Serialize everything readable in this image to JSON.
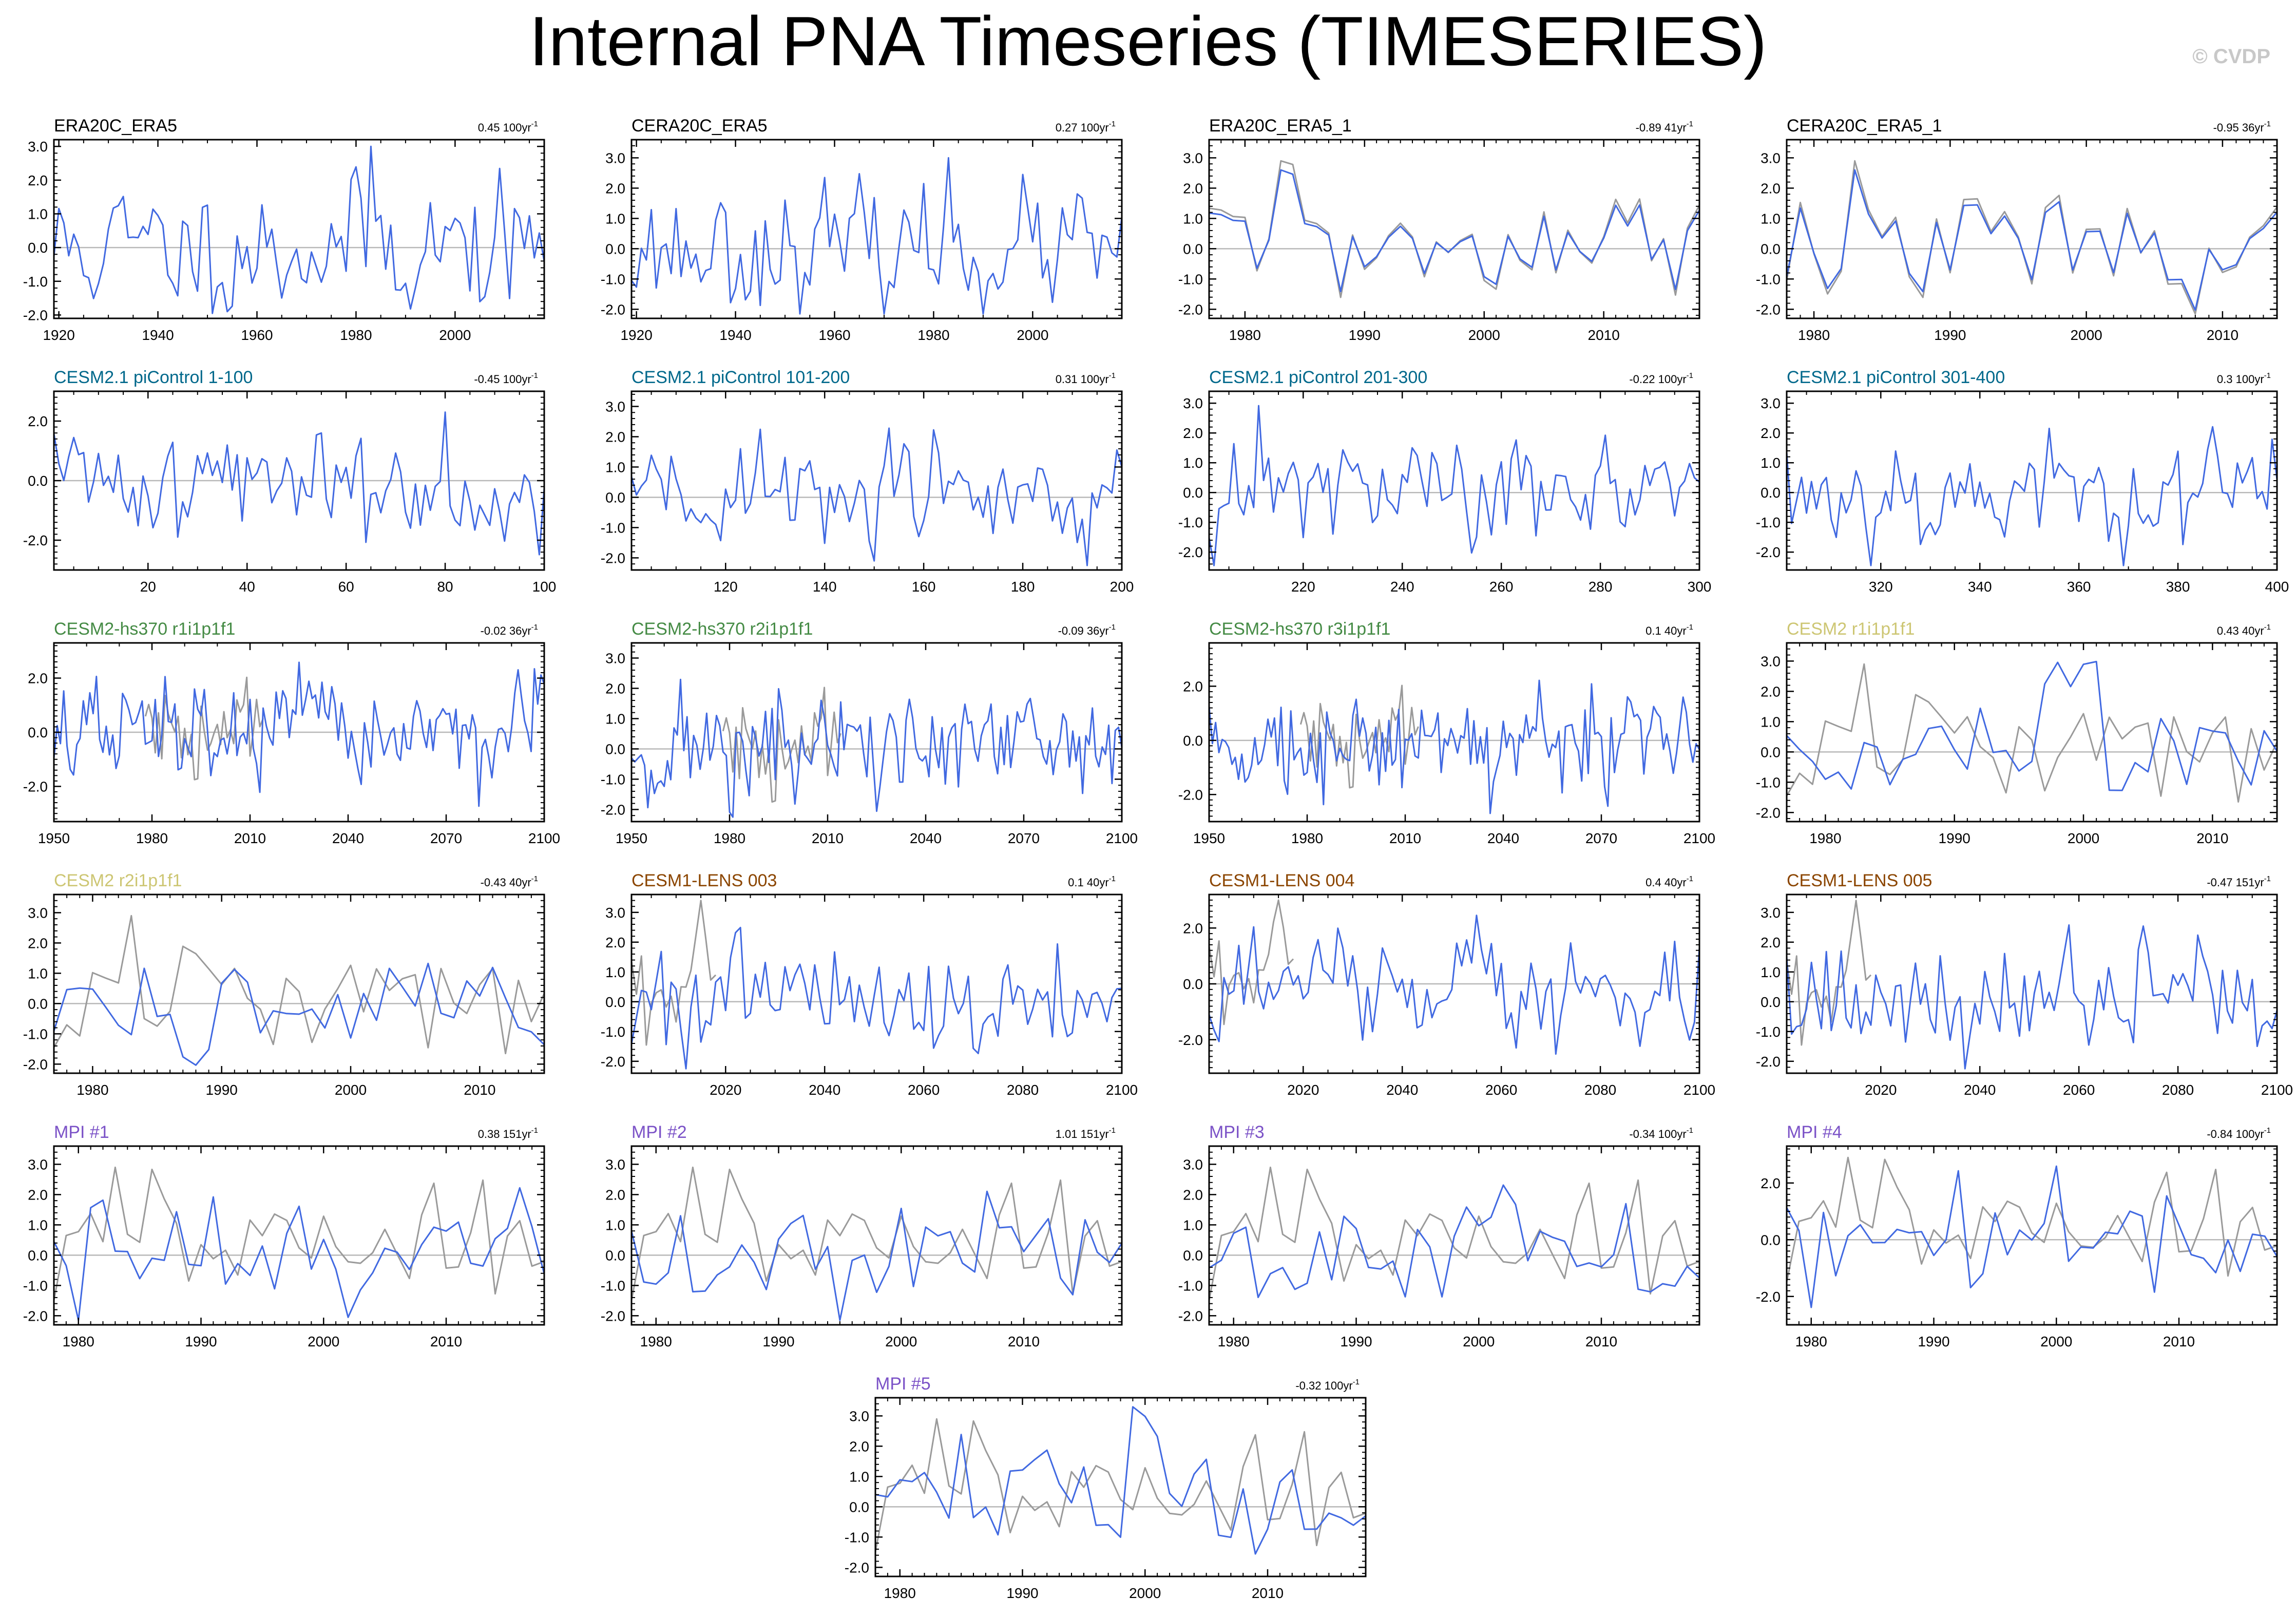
{
  "page": {
    "title": "Internal PNA Timeseries (TIMESERIES)",
    "watermark": "© CVDP"
  },
  "colors": {
    "model": "#4169e1",
    "observations": "#9a9a9a",
    "zero_line": "#b8b8b8",
    "title_obs": "#000000",
    "title_picontrol": "#00688b",
    "title_hs370": "#458b45",
    "title_cesm2": "#cdc673",
    "title_lens": "#8b4500",
    "title_mpi": "#7b52c7"
  },
  "chart_data": [
    {
      "type": "line",
      "title": "ERA20C_ERA5",
      "title_color": "#000000",
      "trend": "0.45 100yr",
      "trend_sup": "-1",
      "xlim": [
        1919,
        2018
      ],
      "xticks": [
        1920,
        1940,
        1960,
        1980,
        2000
      ],
      "ylim": [
        -2.1,
        3.2
      ],
      "yticks": [
        3.0,
        2.0,
        1.0,
        0.0,
        -1.0,
        -2.0
      ],
      "series": [
        {
          "color": "#4169e1",
          "seed": 11,
          "start": 1919,
          "end": 2018,
          "amp": 1.0,
          "peak_x": 1983,
          "peak_y": 3.0
        }
      ]
    },
    {
      "type": "line",
      "title": "CERA20C_ERA5",
      "title_color": "#000000",
      "trend": "0.27 100yr",
      "trend_sup": "-1",
      "xlim": [
        1919,
        2018
      ],
      "xticks": [
        1920,
        1940,
        1960,
        1980,
        2000
      ],
      "ylim": [
        -2.3,
        3.6
      ],
      "yticks": [
        3.0,
        2.0,
        1.0,
        0.0,
        -1.0,
        -2.0
      ],
      "series": [
        {
          "color": "#4169e1",
          "seed": 23,
          "start": 1919,
          "end": 2018,
          "amp": 1.0,
          "peak_x": 1983,
          "peak_y": 3.0
        }
      ]
    },
    {
      "type": "line",
      "title": "ERA20C_ERA5_1",
      "title_color": "#000000",
      "trend": "-0.89 41yr",
      "trend_sup": "-1",
      "xlim": [
        1977,
        2018
      ],
      "xticks": [
        1980,
        1990,
        2000,
        2010
      ],
      "ylim": [
        -2.3,
        3.6
      ],
      "yticks": [
        3.0,
        2.0,
        1.0,
        0.0,
        -1.0,
        -2.0
      ],
      "series": [
        {
          "color": "#9a9a9a",
          "seed": 31,
          "start": 1977,
          "end": 2018,
          "amp": 1.0,
          "peak_x": 1983,
          "peak_y": 2.9
        },
        {
          "color": "#4169e1",
          "seed": 31,
          "start": 1977,
          "end": 2018,
          "amp": 0.88,
          "peak_x": 1983,
          "peak_y": 2.6
        }
      ]
    },
    {
      "type": "line",
      "title": "CERA20C_ERA5_1",
      "title_color": "#000000",
      "trend": "-0.95 36yr",
      "trend_sup": "-1",
      "xlim": [
        1978,
        2014
      ],
      "xticks": [
        1980,
        1990,
        2000,
        2010
      ],
      "ylim": [
        -2.3,
        3.6
      ],
      "yticks": [
        3.0,
        2.0,
        1.0,
        0.0,
        -1.0,
        -2.0
      ],
      "series": [
        {
          "color": "#9a9a9a",
          "seed": 37,
          "start": 1978,
          "end": 2014,
          "amp": 1.0,
          "peak_x": 1983,
          "peak_y": 2.9
        },
        {
          "color": "#4169e1",
          "seed": 37,
          "start": 1978,
          "end": 2014,
          "amp": 0.88,
          "peak_x": 1983,
          "peak_y": 2.6
        }
      ]
    },
    {
      "type": "line",
      "title": "CESM2.1 piControl 1-100",
      "title_color": "#00688b",
      "trend": "-0.45 100yr",
      "trend_sup": "-1",
      "xlim": [
        1,
        100
      ],
      "xticks": [
        20,
        40,
        60,
        80,
        100
      ],
      "ylim": [
        -3.0,
        3.0
      ],
      "yticks": [
        2.0,
        0.0,
        -2.0
      ],
      "series": [
        {
          "color": "#4169e1",
          "seed": 41,
          "start": 1,
          "end": 100,
          "amp": 1.0
        }
      ]
    },
    {
      "type": "line",
      "title": "CESM2.1 piControl 101-200",
      "title_color": "#00688b",
      "trend": "0.31 100yr",
      "trend_sup": "-1",
      "xlim": [
        101,
        200
      ],
      "xticks": [
        120,
        140,
        160,
        180,
        200
      ],
      "ylim": [
        -2.4,
        3.5
      ],
      "yticks": [
        3.0,
        2.0,
        1.0,
        0.0,
        -1.0,
        -2.0
      ],
      "series": [
        {
          "color": "#4169e1",
          "seed": 43,
          "start": 101,
          "end": 200,
          "amp": 1.0
        }
      ]
    },
    {
      "type": "line",
      "title": "CESM2.1 piControl 201-300",
      "title_color": "#00688b",
      "trend": "-0.22 100yr",
      "trend_sup": "-1",
      "xlim": [
        201,
        300
      ],
      "xticks": [
        220,
        240,
        260,
        280,
        300
      ],
      "ylim": [
        -2.6,
        3.4
      ],
      "yticks": [
        3.0,
        2.0,
        1.0,
        0.0,
        -1.0,
        -2.0
      ],
      "series": [
        {
          "color": "#4169e1",
          "seed": 47,
          "start": 201,
          "end": 300,
          "amp": 1.0
        }
      ]
    },
    {
      "type": "line",
      "title": "CESM2.1 piControl 301-400",
      "title_color": "#00688b",
      "trend": "0.3 100yr",
      "trend_sup": "-1",
      "xlim": [
        301,
        400
      ],
      "xticks": [
        320,
        340,
        360,
        380,
        400
      ],
      "ylim": [
        -2.6,
        3.4
      ],
      "yticks": [
        3.0,
        2.0,
        1.0,
        0.0,
        -1.0,
        -2.0
      ],
      "series": [
        {
          "color": "#4169e1",
          "seed": 53,
          "start": 301,
          "end": 400,
          "amp": 1.0
        }
      ]
    },
    {
      "type": "line",
      "title": "CESM2-hs370 r1i1p1f1",
      "title_color": "#458b45",
      "trend": "-0.02 36yr",
      "trend_sup": "-1",
      "xlim": [
        1950,
        2100
      ],
      "xticks": [
        1950,
        1980,
        2010,
        2040,
        2070,
        2100
      ],
      "ylim": [
        -3.3,
        3.3
      ],
      "yticks": [
        2.0,
        0.0,
        -2.0
      ],
      "series": [
        {
          "color": "#9a9a9a",
          "seed": 61,
          "start": 1978,
          "end": 2014,
          "amp": 1.0
        },
        {
          "color": "#4169e1",
          "seed": 67,
          "start": 1950,
          "end": 2100,
          "amp": 1.0
        }
      ]
    },
    {
      "type": "line",
      "title": "CESM2-hs370 r2i1p1f1",
      "title_color": "#458b45",
      "trend": "-0.09 36yr",
      "trend_sup": "-1",
      "xlim": [
        1950,
        2100
      ],
      "xticks": [
        1950,
        1980,
        2010,
        2040,
        2070,
        2100
      ],
      "ylim": [
        -2.4,
        3.5
      ],
      "yticks": [
        3.0,
        2.0,
        1.0,
        0.0,
        -1.0,
        -2.0
      ],
      "series": [
        {
          "color": "#9a9a9a",
          "seed": 61,
          "start": 1978,
          "end": 2014,
          "amp": 1.0
        },
        {
          "color": "#4169e1",
          "seed": 71,
          "start": 1950,
          "end": 2100,
          "amp": 1.0
        }
      ]
    },
    {
      "type": "line",
      "title": "CESM2-hs370 r3i1p1f1",
      "title_color": "#458b45",
      "trend": "0.1 40yr",
      "trend_sup": "-1",
      "xlim": [
        1950,
        2100
      ],
      "xticks": [
        1950,
        1980,
        2010,
        2040,
        2070,
        2100
      ],
      "ylim": [
        -3.0,
        3.6
      ],
      "yticks": [
        2.0,
        0.0,
        -2.0
      ],
      "series": [
        {
          "color": "#9a9a9a",
          "seed": 61,
          "start": 1978,
          "end": 2014,
          "amp": 1.0
        },
        {
          "color": "#4169e1",
          "seed": 73,
          "start": 1950,
          "end": 2100,
          "amp": 1.0
        }
      ]
    },
    {
      "type": "line",
      "title": "CESM2 r1i1p1f1",
      "title_color": "#cdc673",
      "trend": "0.43 40yr",
      "trend_sup": "-1",
      "xlim": [
        1977,
        2015
      ],
      "xticks": [
        1980,
        1990,
        2000,
        2010
      ],
      "ylim": [
        -2.3,
        3.6
      ],
      "yticks": [
        3.0,
        2.0,
        1.0,
        0.0,
        -1.0,
        -2.0
      ],
      "series": [
        {
          "color": "#9a9a9a",
          "seed": 79,
          "start": 1977,
          "end": 2015,
          "amp": 1.0,
          "peak_x": 1983,
          "peak_y": 2.9
        },
        {
          "color": "#4169e1",
          "seed": 83,
          "start": 1977,
          "end": 2015,
          "amp": 1.0
        }
      ]
    },
    {
      "type": "line",
      "title": "CESM2 r2i1p1f1",
      "title_color": "#cdc673",
      "trend": "-0.43 40yr",
      "trend_sup": "-1",
      "xlim": [
        1977,
        2015
      ],
      "xticks": [
        1980,
        1990,
        2000,
        2010
      ],
      "ylim": [
        -2.3,
        3.6
      ],
      "yticks": [
        3.0,
        2.0,
        1.0,
        0.0,
        -1.0,
        -2.0
      ],
      "series": [
        {
          "color": "#9a9a9a",
          "seed": 79,
          "start": 1977,
          "end": 2015,
          "amp": 1.0,
          "peak_x": 1983,
          "peak_y": 2.9
        },
        {
          "color": "#4169e1",
          "seed": 89,
          "start": 1977,
          "end": 2015,
          "amp": 1.0
        }
      ]
    },
    {
      "type": "line",
      "title": "CESM1-LENS 003",
      "title_color": "#8b4500",
      "trend": "0.1 40yr",
      "trend_sup": "-1",
      "xlim": [
        2001,
        2100
      ],
      "xticks": [
        2020,
        2040,
        2060,
        2080,
        2100
      ],
      "ylim": [
        -2.4,
        3.6
      ],
      "yticks": [
        3.0,
        2.0,
        1.0,
        0.0,
        -1.0,
        -2.0
      ],
      "series": [
        {
          "color": "#9a9a9a",
          "seed": 97,
          "start": 2001,
          "end": 2018,
          "amp": 1.0
        },
        {
          "color": "#4169e1",
          "seed": 101,
          "start": 2001,
          "end": 2100,
          "amp": 1.0
        }
      ]
    },
    {
      "type": "line",
      "title": "CESM1-LENS 004",
      "title_color": "#8b4500",
      "trend": "0.4 40yr",
      "trend_sup": "-1",
      "xlim": [
        2001,
        2100
      ],
      "xticks": [
        2020,
        2040,
        2060,
        2080,
        2100
      ],
      "ylim": [
        -3.2,
        3.2
      ],
      "yticks": [
        2.0,
        0.0,
        -2.0
      ],
      "series": [
        {
          "color": "#9a9a9a",
          "seed": 97,
          "start": 2001,
          "end": 2018,
          "amp": 1.0
        },
        {
          "color": "#4169e1",
          "seed": 103,
          "start": 2001,
          "end": 2100,
          "amp": 1.0
        }
      ]
    },
    {
      "type": "line",
      "title": "CESM1-LENS 005",
      "title_color": "#8b4500",
      "trend": "-0.47 151yr",
      "trend_sup": "-1",
      "xlim": [
        2001,
        2100
      ],
      "xticks": [
        2020,
        2040,
        2060,
        2080,
        2100
      ],
      "ylim": [
        -2.4,
        3.6
      ],
      "yticks": [
        3.0,
        2.0,
        1.0,
        0.0,
        -1.0,
        -2.0
      ],
      "series": [
        {
          "color": "#9a9a9a",
          "seed": 97,
          "start": 2001,
          "end": 2018,
          "amp": 1.0
        },
        {
          "color": "#4169e1",
          "seed": 107,
          "start": 2001,
          "end": 2100,
          "amp": 1.0
        }
      ]
    },
    {
      "type": "line",
      "title": "MPI #1",
      "title_color": "#7b52c7",
      "trend": "0.38 151yr",
      "trend_sup": "-1",
      "xlim": [
        1978,
        2018
      ],
      "xticks": [
        1980,
        1990,
        2000,
        2010
      ],
      "ylim": [
        -2.3,
        3.6
      ],
      "yticks": [
        3.0,
        2.0,
        1.0,
        0.0,
        -1.0,
        -2.0
      ],
      "series": [
        {
          "color": "#9a9a9a",
          "seed": 113,
          "start": 1978,
          "end": 2018,
          "amp": 1.0,
          "peak_x": 1983,
          "peak_y": 2.9
        },
        {
          "color": "#4169e1",
          "seed": 127,
          "start": 1978,
          "end": 2018,
          "amp": 1.0
        }
      ]
    },
    {
      "type": "line",
      "title": "MPI #2",
      "title_color": "#7b52c7",
      "trend": "1.01 151yr",
      "trend_sup": "-1",
      "xlim": [
        1978,
        2018
      ],
      "xticks": [
        1980,
        1990,
        2000,
        2010
      ],
      "ylim": [
        -2.3,
        3.6
      ],
      "yticks": [
        3.0,
        2.0,
        1.0,
        0.0,
        -1.0,
        -2.0
      ],
      "series": [
        {
          "color": "#9a9a9a",
          "seed": 113,
          "start": 1978,
          "end": 2018,
          "amp": 1.0,
          "peak_x": 1983,
          "peak_y": 2.9
        },
        {
          "color": "#4169e1",
          "seed": 131,
          "start": 1978,
          "end": 2018,
          "amp": 1.0
        }
      ]
    },
    {
      "type": "line",
      "title": "MPI #3",
      "title_color": "#7b52c7",
      "trend": "-0.34 100yr",
      "trend_sup": "-1",
      "xlim": [
        1978,
        2018
      ],
      "xticks": [
        1980,
        1990,
        2000,
        2010
      ],
      "ylim": [
        -2.3,
        3.6
      ],
      "yticks": [
        3.0,
        2.0,
        1.0,
        0.0,
        -1.0,
        -2.0
      ],
      "series": [
        {
          "color": "#9a9a9a",
          "seed": 113,
          "start": 1978,
          "end": 2018,
          "amp": 1.0,
          "peak_x": 1983,
          "peak_y": 2.9
        },
        {
          "color": "#4169e1",
          "seed": 137,
          "start": 1978,
          "end": 2018,
          "amp": 1.0
        }
      ]
    },
    {
      "type": "line",
      "title": "MPI #4",
      "title_color": "#7b52c7",
      "trend": "-0.84 100yr",
      "trend_sup": "-1",
      "xlim": [
        1978,
        2018
      ],
      "xticks": [
        1980,
        1990,
        2000,
        2010
      ],
      "ylim": [
        -3.0,
        3.3
      ],
      "yticks": [
        2.0,
        0.0,
        -2.0
      ],
      "series": [
        {
          "color": "#9a9a9a",
          "seed": 113,
          "start": 1978,
          "end": 2018,
          "amp": 1.0,
          "peak_x": 1983,
          "peak_y": 2.9
        },
        {
          "color": "#4169e1",
          "seed": 139,
          "start": 1978,
          "end": 2018,
          "amp": 1.0
        }
      ]
    },
    {
      "type": "line",
      "title": "MPI #5",
      "title_color": "#7b52c7",
      "trend": "-0.32 100yr",
      "trend_sup": "-1",
      "xlim": [
        1978,
        2018
      ],
      "xticks": [
        1980,
        1990,
        2000,
        2010
      ],
      "ylim": [
        -2.3,
        3.6
      ],
      "yticks": [
        3.0,
        2.0,
        1.0,
        0.0,
        -1.0,
        -2.0
      ],
      "series": [
        {
          "color": "#9a9a9a",
          "seed": 113,
          "start": 1978,
          "end": 2018,
          "amp": 1.0,
          "peak_x": 1983,
          "peak_y": 2.9
        },
        {
          "color": "#4169e1",
          "seed": 149,
          "start": 1978,
          "end": 2018,
          "amp": 1.0,
          "peak_x": 1999,
          "peak_y": 3.3
        }
      ]
    }
  ]
}
